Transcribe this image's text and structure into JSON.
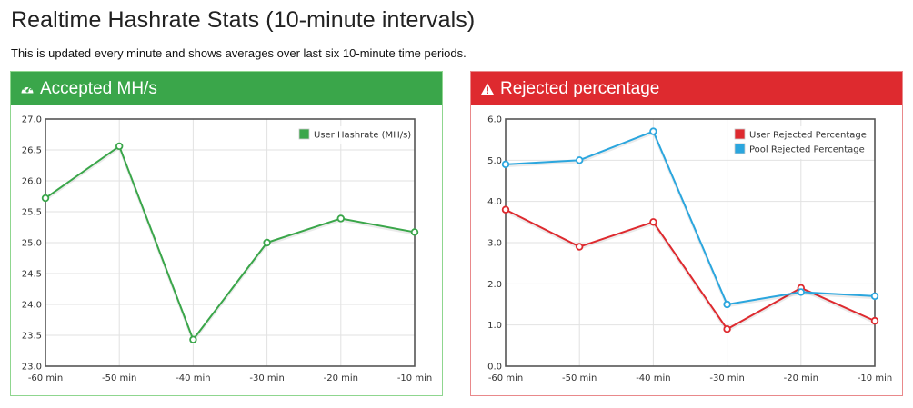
{
  "page": {
    "title": "Realtime Hashrate Stats (10-minute intervals)",
    "subtitle": "This is updated every minute and shows averages over last six 10-minute time periods."
  },
  "panels": {
    "accepted": {
      "title": "Accepted MH/s",
      "icon": "dashboard-icon",
      "header_color": "#3aa64a"
    },
    "rejected": {
      "title": "Rejected percentage",
      "icon": "warning-icon",
      "header_color": "#de2a2f"
    }
  },
  "chart_data": [
    {
      "type": "line",
      "title": "Accepted MH/s",
      "x": [
        "-60 min",
        "-50 min",
        "-40 min",
        "-30 min",
        "-20 min",
        "-10 min"
      ],
      "yticks": [
        "27.0",
        "26.5",
        "26.0",
        "25.5",
        "25.0",
        "24.5",
        "24.0",
        "23.5",
        "23.0"
      ],
      "ylim": [
        23.0,
        27.0
      ],
      "grid": true,
      "legend_position": "top-right",
      "series": [
        {
          "name": "User Hashrate (MH/s)",
          "color": "#3aa64a",
          "values": [
            25.72,
            26.56,
            23.43,
            25.0,
            25.39,
            25.17
          ]
        }
      ]
    },
    {
      "type": "line",
      "title": "Rejected percentage",
      "x": [
        "-60 min",
        "-50 min",
        "-40 min",
        "-30 min",
        "-20 min",
        "-10 min"
      ],
      "yticks": [
        "6.0",
        "5.0",
        "4.0",
        "3.0",
        "2.0",
        "1.0",
        "0.0"
      ],
      "ylim": [
        0.0,
        6.0
      ],
      "grid": true,
      "legend_position": "top-right",
      "series": [
        {
          "name": "User Rejected Percentage",
          "color": "#de2a2f",
          "values": [
            3.8,
            2.9,
            3.5,
            0.9,
            1.9,
            1.1
          ]
        },
        {
          "name": "Pool Rejected Percentage",
          "color": "#2ba6de",
          "values": [
            4.9,
            5.0,
            5.7,
            1.5,
            1.8,
            1.7
          ]
        }
      ]
    }
  ]
}
